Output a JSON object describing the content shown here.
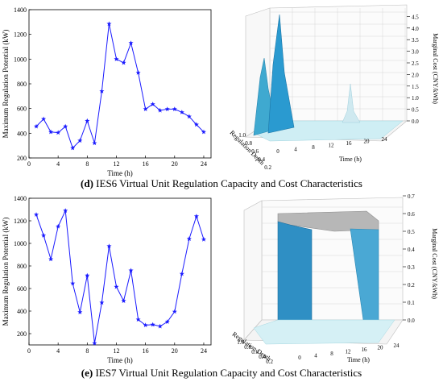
{
  "captions": [
    {
      "letter": "(d)",
      "text": "IES6 Virtual Unit Regulation Capacity and Cost Characteristics"
    },
    {
      "letter": "(e)",
      "text": "IES7 Virtual Unit Regulation Capacity and Cost Characteristics"
    }
  ],
  "chart_data": [
    {
      "type": "line",
      "panel": "d-left",
      "xlabel": "Time (h)",
      "ylabel": "Maximum Regulation Potential (kW)",
      "xlim": [
        0,
        25
      ],
      "ylim": [
        200,
        1400
      ],
      "xticks": [
        0,
        4,
        8,
        12,
        16,
        20,
        24
      ],
      "yticks": [
        200,
        400,
        600,
        800,
        1000,
        1200,
        1400
      ],
      "color": "#1a1aff",
      "marker": "star",
      "x": [
        1,
        2,
        3,
        4,
        5,
        6,
        7,
        8,
        9,
        10,
        11,
        12,
        13,
        14,
        15,
        16,
        17,
        18,
        19,
        20,
        21,
        22,
        23,
        24
      ],
      "y": [
        455,
        515,
        410,
        405,
        455,
        280,
        340,
        500,
        320,
        740,
        1285,
        1000,
        970,
        1130,
        890,
        595,
        635,
        585,
        595,
        595,
        570,
        535,
        470,
        410
      ]
    },
    {
      "type": "surface3d",
      "panel": "d-right",
      "xlabel": "Time (h)",
      "ylabel": "Regulation Depth",
      "zlabel": "Marginal Cost (CNY/kWh)",
      "xticks": [
        0,
        4,
        8,
        12,
        16,
        20,
        24
      ],
      "yticks": [
        0.2,
        0.4,
        0.6,
        0.8,
        1.0
      ],
      "zticks": [
        "0.0",
        "0.5",
        "1.0",
        "1.5",
        "2.0",
        "2.5",
        "3.0",
        "3.5",
        "4.0",
        "4.5"
      ],
      "zlim": [
        0,
        4.5
      ],
      "peaks": [
        {
          "time": 2,
          "regulation_depth": 1.0,
          "marginal_cost": 2.2
        },
        {
          "time": 5,
          "regulation_depth": 1.0,
          "marginal_cost": 3.8
        },
        {
          "time": 22,
          "regulation_depth": 1.0,
          "marginal_cost": 0.4
        }
      ]
    },
    {
      "type": "line",
      "panel": "e-left",
      "xlabel": "Time (h)",
      "ylabel": "Maximum Regulation Potential (kW)",
      "xlim": [
        0,
        25
      ],
      "ylim": [
        100,
        1400
      ],
      "xticks": [
        0,
        4,
        8,
        12,
        16,
        20,
        24
      ],
      "yticks": [
        200,
        400,
        600,
        800,
        1000,
        1200,
        1400
      ],
      "color": "#1a1aff",
      "marker": "star",
      "x": [
        1,
        2,
        3,
        4,
        5,
        6,
        7,
        8,
        9,
        10,
        11,
        12,
        13,
        14,
        15,
        16,
        17,
        18,
        19,
        20,
        21,
        22,
        23,
        24
      ],
      "y": [
        1255,
        1070,
        860,
        1150,
        1290,
        645,
        390,
        715,
        115,
        475,
        975,
        615,
        490,
        760,
        325,
        275,
        280,
        265,
        305,
        395,
        730,
        1040,
        1240,
        1035
      ]
    },
    {
      "type": "surface3d",
      "panel": "e-right",
      "xlabel": "Time (h)",
      "ylabel": "Regulation Depth",
      "zlabel": "Marginal Cost (CNY/kWh)",
      "xticks": [
        0,
        4,
        8,
        12,
        16,
        20,
        24
      ],
      "yticks": [
        0.2,
        0.4,
        0.6,
        0.8,
        1.0
      ],
      "zticks": [
        "0.0",
        "0.1",
        "0.2",
        "0.3",
        "0.4",
        "0.5",
        "0.6",
        "0.7"
      ],
      "zlim": [
        0,
        0.7
      ],
      "plateau": {
        "time_start": 2,
        "time_end": 16,
        "marginal_cost": 0.65
      }
    }
  ]
}
